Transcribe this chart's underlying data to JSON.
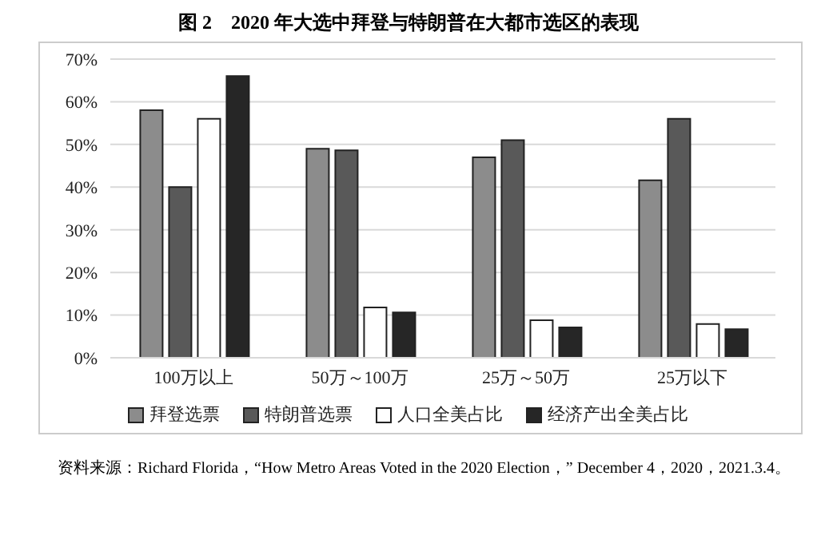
{
  "chart_data": {
    "type": "bar",
    "title": "图 2　2020 年大选中拜登与特朗普在大都市选区的表现",
    "categories": [
      "100万以上",
      "50万～100万",
      "25万～50万",
      "25万以下"
    ],
    "series": [
      {
        "name": "拜登选票",
        "color": "#8c8c8c",
        "values": [
          58,
          49,
          47,
          41.6
        ]
      },
      {
        "name": "特朗普选票",
        "color": "#595959",
        "values": [
          40,
          48.6,
          51,
          56
        ]
      },
      {
        "name": "人口全美占比",
        "color": "#ffffff",
        "values": [
          56,
          11.8,
          8.8,
          7.9
        ]
      },
      {
        "name": "经济产出全美占比",
        "color": "#262626",
        "values": [
          66,
          10.6,
          7.1,
          6.7
        ]
      }
    ],
    "ylim": [
      0,
      70
    ],
    "yticks": [
      {
        "value": 0,
        "label": "0%"
      },
      {
        "value": 10,
        "label": "10%"
      },
      {
        "value": 20,
        "label": "20%"
      },
      {
        "value": 30,
        "label": "30%"
      },
      {
        "value": 40,
        "label": "40%"
      },
      {
        "value": 50,
        "label": "50%"
      },
      {
        "value": 60,
        "label": "60%"
      },
      {
        "value": 70,
        "label": "70%"
      }
    ],
    "grid": "y",
    "legend": "bottom",
    "annotations": [
      "资料来源：Richard Florida，“How Metro Areas Voted in the 2020 Election，” December 4，2020，2021.3.4。"
    ]
  }
}
